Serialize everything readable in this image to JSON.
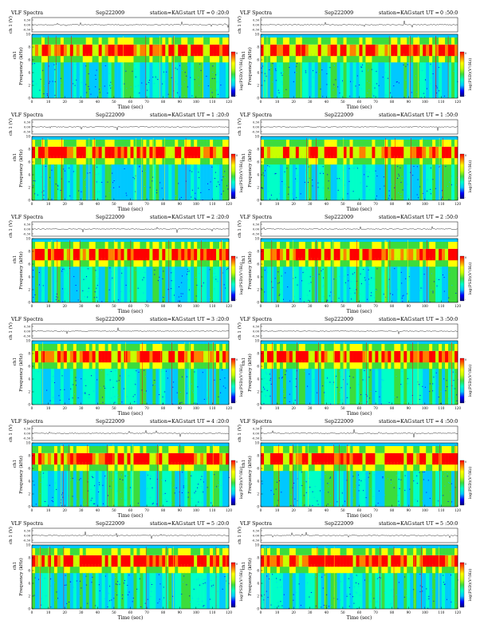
{
  "panel_common": {
    "title_left": "VLF Spectra",
    "date": "Sep222009",
    "station": "station=KAG",
    "start_prefix": "start UT =",
    "ch_label": "ch 1 (V)",
    "wave_ticks": [
      "0.30",
      "0.00",
      "-0.30"
    ],
    "freq_label": "Frequency (kHz)",
    "freq_ticks": [
      "0",
      "2",
      "4",
      "6",
      "8",
      "10"
    ],
    "ch1_label": "ch1",
    "time_label": "Time (sec)",
    "time_ticks": [
      "0",
      "10",
      "20",
      "30",
      "40",
      "50",
      "60",
      "70",
      "80",
      "90",
      "100",
      "110",
      "120"
    ],
    "colorbar_label": "log(PSD)(V²/Hz)",
    "colorbar_ticks": [
      "0",
      "-"
    ]
  },
  "chart_data": [
    {
      "type": "heatmap",
      "start_ut": "0 :20:0",
      "title": "VLF Spectra  Sep222009  station=KAG  start UT =0 :20:0",
      "xlabel": "Time (sec)",
      "ylabel": "Frequency (kHz)",
      "xlim": [
        0,
        120
      ],
      "ylim": [
        0,
        10
      ],
      "colorbar": "log(PSD)(V²/Hz)"
    },
    {
      "type": "heatmap",
      "start_ut": "0 :50:0",
      "title": "VLF Spectra  Sep222009  station=KAG  start UT =0 :50:0",
      "xlabel": "Time (sec)",
      "ylabel": "Frequency (kHz)",
      "xlim": [
        0,
        120
      ],
      "ylim": [
        0,
        10
      ],
      "colorbar": "log(PSD)(V²/Hz)"
    },
    {
      "type": "heatmap",
      "start_ut": "1 :20:0",
      "title": "VLF Spectra  Sep222009  station=KAG  start UT =1 :20:0",
      "xlabel": "Time (sec)",
      "ylabel": "Frequency (kHz)",
      "xlim": [
        0,
        120
      ],
      "ylim": [
        0,
        10
      ],
      "colorbar": "log(PSD)(V²/Hz)"
    },
    {
      "type": "heatmap",
      "start_ut": "1 :50:0",
      "title": "VLF Spectra  Sep222009  station=KAG  start UT =1 :50:0",
      "xlabel": "Time (sec)",
      "ylabel": "Frequency (kHz)",
      "xlim": [
        0,
        120
      ],
      "ylim": [
        0,
        10
      ],
      "colorbar": "log(PSD)(V²/Hz)"
    },
    {
      "type": "heatmap",
      "start_ut": "2 :20:0",
      "title": "VLF Spectra  Sep222009  station=KAG  start UT =2 :20:0",
      "xlabel": "Time (sec)",
      "ylabel": "Frequency (kHz)",
      "xlim": [
        0,
        120
      ],
      "ylim": [
        0,
        10
      ],
      "colorbar": "log(PSD)(V²/Hz)"
    },
    {
      "type": "heatmap",
      "start_ut": "2 :50:0",
      "title": "VLF Spectra  Sep222009  station=KAG  start UT =2 :50:0",
      "xlabel": "Time (sec)",
      "ylabel": "Frequency (kHz)",
      "xlim": [
        0,
        120
      ],
      "ylim": [
        0,
        10
      ],
      "colorbar": "log(PSD)(V²/Hz)"
    },
    {
      "type": "heatmap",
      "start_ut": "3 :20:0",
      "title": "VLF Spectra  Sep222009  station=KAG  start UT =3 :20:0",
      "xlabel": "Time (sec)",
      "ylabel": "Frequency (kHz)",
      "xlim": [
        0,
        120
      ],
      "ylim": [
        0,
        10
      ],
      "colorbar": "log(PSD)(V²/Hz)"
    },
    {
      "type": "heatmap",
      "start_ut": "3 :50:0",
      "title": "VLF Spectra  Sep222009  station=KAG  start UT =3 :50:0",
      "xlabel": "Time (sec)",
      "ylabel": "Frequency (kHz)",
      "xlim": [
        0,
        120
      ],
      "ylim": [
        0,
        10
      ],
      "colorbar": "log(PSD)(V²/Hz)"
    },
    {
      "type": "heatmap",
      "start_ut": "4 :20:0",
      "title": "VLF Spectra  Sep222009  station=KAG  start UT =4 :20:0",
      "xlabel": "Time (sec)",
      "ylabel": "Frequency (kHz)",
      "xlim": [
        0,
        120
      ],
      "ylim": [
        0,
        10
      ],
      "colorbar": "log(PSD)(V²/Hz)"
    },
    {
      "type": "heatmap",
      "start_ut": "4 :50:0",
      "title": "VLF Spectra  Sep222009  station=KAG  start UT =4 :50:0",
      "xlabel": "Time (sec)",
      "ylabel": "Frequency (kHz)",
      "xlim": [
        0,
        120
      ],
      "ylim": [
        0,
        10
      ],
      "colorbar": "log(PSD)(V²/Hz)"
    },
    {
      "type": "heatmap",
      "start_ut": "5 :20:0",
      "title": "VLF Spectra  Sep222009  station=KAG  start UT =5 :20:0",
      "xlabel": "Time (sec)",
      "ylabel": "Frequency (kHz)",
      "xlim": [
        0,
        120
      ],
      "ylim": [
        0,
        10
      ],
      "colorbar": "log(PSD)(V²/Hz)"
    },
    {
      "type": "heatmap",
      "start_ut": "5 :50:0",
      "title": "VLF Spectra  Sep222009  station=KAG  start UT =5 :50:0",
      "xlabel": "Time (sec)",
      "ylabel": "Frequency (kHz)",
      "xlim": [
        0,
        120
      ],
      "ylim": [
        0,
        10
      ],
      "colorbar": "log(PSD)(V²/Hz)"
    }
  ],
  "colormap": [
    "#00007a",
    "#0000ff",
    "#00c8ff",
    "#00ffc8",
    "#3cdc3c",
    "#c8ff00",
    "#ffff00",
    "#ff8000",
    "#ff0000"
  ]
}
